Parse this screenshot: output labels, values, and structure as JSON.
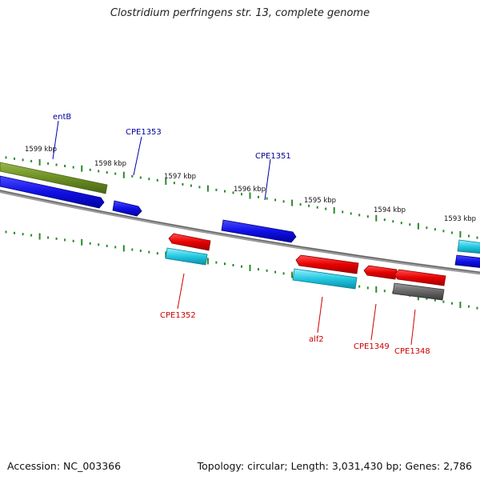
{
  "title": "Clostridium perfringens str. 13, complete genome",
  "footer": {
    "accession": "Accession: NC_003366",
    "summary": "Topology: circular; Length: 3,031,430 bp; Genes: 2,786"
  },
  "ticks": [
    "1599 kbp",
    "1598 kbp",
    "1597 kbp",
    "1596 kbp",
    "1595 kbp",
    "1594 kbp",
    "1593 kbp"
  ],
  "genes": {
    "entB": "entB",
    "cpe1353": "CPE1353",
    "cpe1351": "CPE1351",
    "cpe1352": "CPE1352",
    "alf2": "alf2",
    "cpe1349": "CPE1349",
    "cpe1348": "CPE1348"
  },
  "colors": {
    "backbone": "#8a8a8a",
    "tick": "#2a8a2a",
    "forward_gene": "#1010e0",
    "reverse_gene": "#e01010",
    "forward_cds": "#6b8e23",
    "reverse_cds": "#22c8d8",
    "other": "#666666",
    "forward_label": "#00009a",
    "reverse_label": "#cc0000"
  }
}
